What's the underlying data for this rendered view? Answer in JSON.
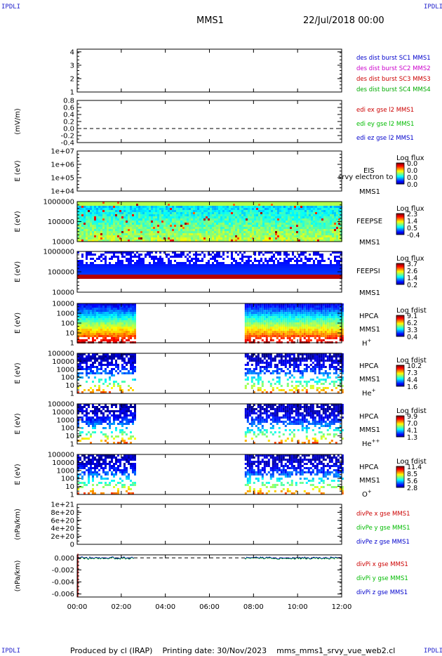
{
  "corner_left": "IPDLI",
  "corner_right": "IPDLI",
  "corner_bottom_left": "IPDLI",
  "corner_bottom_right": "IPDLI",
  "header": {
    "spacecraft": "MMS1",
    "date": "22/Jul/2018 00:00"
  },
  "footer": {
    "text": "Produced by cl (IRAP)    Printing date: 30/Nov/2023    mms_mms1_srvy_vue_web2.cl"
  },
  "x_axis": {
    "ticks": [
      "00:00",
      "02:00",
      "04:00",
      "06:00",
      "08:00",
      "10:00",
      "12:00"
    ],
    "range_hours": [
      0,
      12
    ]
  },
  "colors": {
    "mms1": "#0000cc",
    "mms2": "#cc00cc",
    "mms3": "#cc0000",
    "mms4": "#00aa00",
    "red": "#cc0000",
    "green": "#00bb00",
    "blue": "#0000cc"
  },
  "chart_data": [
    {
      "type": "line",
      "ylabel": "",
      "yticks": [
        "1",
        "2",
        "3",
        "4"
      ],
      "ylim": [
        1,
        4.2
      ],
      "series": [
        {
          "name": "des dist burst SC1 MMS1",
          "color": "#0000cc",
          "values": []
        },
        {
          "name": "des dist burst SC2 MMS2",
          "color": "#cc00cc",
          "values": []
        },
        {
          "name": "des dist burst SC3 MMS3",
          "color": "#cc0000",
          "values": []
        },
        {
          "name": "des dist burst SC4 MMS4",
          "color": "#00aa00",
          "values": []
        }
      ]
    },
    {
      "type": "line",
      "ylabel": "(mV/m)",
      "yticks": [
        "0.8",
        "0.6",
        "0.4",
        "0.2",
        "0.0",
        "-0.2",
        "-0.4"
      ],
      "ylim": [
        -0.4,
        0.8
      ],
      "zero_line": true,
      "series": [
        {
          "name": "edi ex gse l2 MMS1",
          "color": "#cc0000",
          "values": []
        },
        {
          "name": "edi ey gse l2 MMS1",
          "color": "#00bb00",
          "values": []
        },
        {
          "name": "edi ez gse l2 MMS1",
          "color": "#0000cc",
          "values": []
        }
      ]
    },
    {
      "type": "heatmap",
      "ylabel": "E (eV)",
      "yticks": [
        "1e+07",
        "1e+06",
        "1e+05",
        "1e+04"
      ],
      "instrument": "EIS",
      "overlay_text": "srvy electron to",
      "spacecraft": "MMS1",
      "colorbar_title": "Log flux",
      "colorbar_ticks": [
        "0.0",
        "0.0",
        "0.0",
        "0.0"
      ],
      "coverage_hours": []
    },
    {
      "type": "heatmap",
      "ylabel": "E (eV)",
      "yticks": [
        "1000000",
        "100000",
        "10000"
      ],
      "instrument": "FEEPSE",
      "spacecraft": "MMS1",
      "colorbar_title": "Log flux",
      "colorbar_ticks": [
        "2.3",
        "1.4",
        "0.5",
        "-0.4"
      ],
      "coverage_hours": [
        [
          0,
          12
        ]
      ]
    },
    {
      "type": "heatmap",
      "ylabel": "E (eV)",
      "yticks": [
        "1000000",
        "100000",
        "10000"
      ],
      "instrument": "FEEPSI",
      "spacecraft": "MMS1",
      "colorbar_title": "Log flux",
      "colorbar_ticks": [
        "3.7",
        "2.6",
        "1.4",
        "0.2"
      ],
      "coverage_hours": [
        [
          0,
          12
        ]
      ]
    },
    {
      "type": "heatmap",
      "ylabel": "E (eV)",
      "yticks": [
        "10000",
        "1000",
        "100",
        "10",
        "1"
      ],
      "instrument": "HPCA",
      "spacecraft": "MMS1",
      "species": "H+",
      "colorbar_title": "Log fdist",
      "colorbar_ticks": [
        "9.1",
        "6.2",
        "3.3",
        "0.4"
      ],
      "coverage_hours": [
        [
          0,
          2.6
        ],
        [
          7.6,
          12
        ]
      ]
    },
    {
      "type": "heatmap",
      "ylabel": "E (eV)",
      "yticks": [
        "100000",
        "10000",
        "1000",
        "100",
        "10",
        "1"
      ],
      "instrument": "HPCA",
      "spacecraft": "MMS1",
      "species": "He+",
      "colorbar_title": "Log fdist",
      "colorbar_ticks": [
        "10.2",
        "7.3",
        "4.4",
        "1.6"
      ],
      "coverage_hours": [
        [
          0,
          2.6
        ],
        [
          7.6,
          12
        ]
      ]
    },
    {
      "type": "heatmap",
      "ylabel": "E (eV)",
      "yticks": [
        "100000",
        "10000",
        "1000",
        "100",
        "10",
        "1"
      ],
      "instrument": "HPCA",
      "spacecraft": "MMS1",
      "species": "He++",
      "colorbar_title": "Log fdist",
      "colorbar_ticks": [
        "9.9",
        "7.0",
        "4.1",
        "1.3"
      ],
      "coverage_hours": [
        [
          0,
          2.6
        ],
        [
          7.6,
          12
        ]
      ]
    },
    {
      "type": "heatmap",
      "ylabel": "E (eV)",
      "yticks": [
        "100000",
        "10000",
        "1000",
        "100",
        "10",
        "1"
      ],
      "instrument": "HPCA",
      "spacecraft": "MMS1",
      "species": "O+",
      "colorbar_title": "Log fdist",
      "colorbar_ticks": [
        "11.4",
        "8.5",
        "5.6",
        "2.8"
      ],
      "coverage_hours": [
        [
          0,
          2.6
        ],
        [
          7.6,
          12
        ]
      ]
    },
    {
      "type": "line",
      "ylabel": "(nPa/km)",
      "yticks": [
        "1e+21",
        "8e+20",
        "6e+20",
        "4e+20",
        "2e+20",
        "0"
      ],
      "ylim": [
        0,
        1e+21
      ],
      "zero_line": true,
      "series": [
        {
          "name": "divPe x gse MMS1",
          "color": "#cc0000",
          "values": []
        },
        {
          "name": "divPe y gse MMS1",
          "color": "#00bb00",
          "values": []
        },
        {
          "name": "divPe z gse MMS1",
          "color": "#0000cc",
          "values": []
        }
      ]
    },
    {
      "type": "line",
      "ylabel": "(nPa/km)",
      "yticks": [
        "0.000",
        "-0.002",
        "-0.004",
        "-0.006"
      ],
      "ylim": [
        -0.0065,
        0.0005
      ],
      "zero_line": true,
      "series": [
        {
          "name": "divPi x gse MMS1",
          "color": "#cc0000",
          "values": []
        },
        {
          "name": "divPi y gse MMS1",
          "color": "#00bb00",
          "values": []
        },
        {
          "name": "divPi z gse MMS1",
          "color": "#0000cc",
          "values": []
        }
      ],
      "trace_hours": [
        [
          0,
          2.6
        ],
        [
          7.6,
          12
        ]
      ]
    }
  ]
}
